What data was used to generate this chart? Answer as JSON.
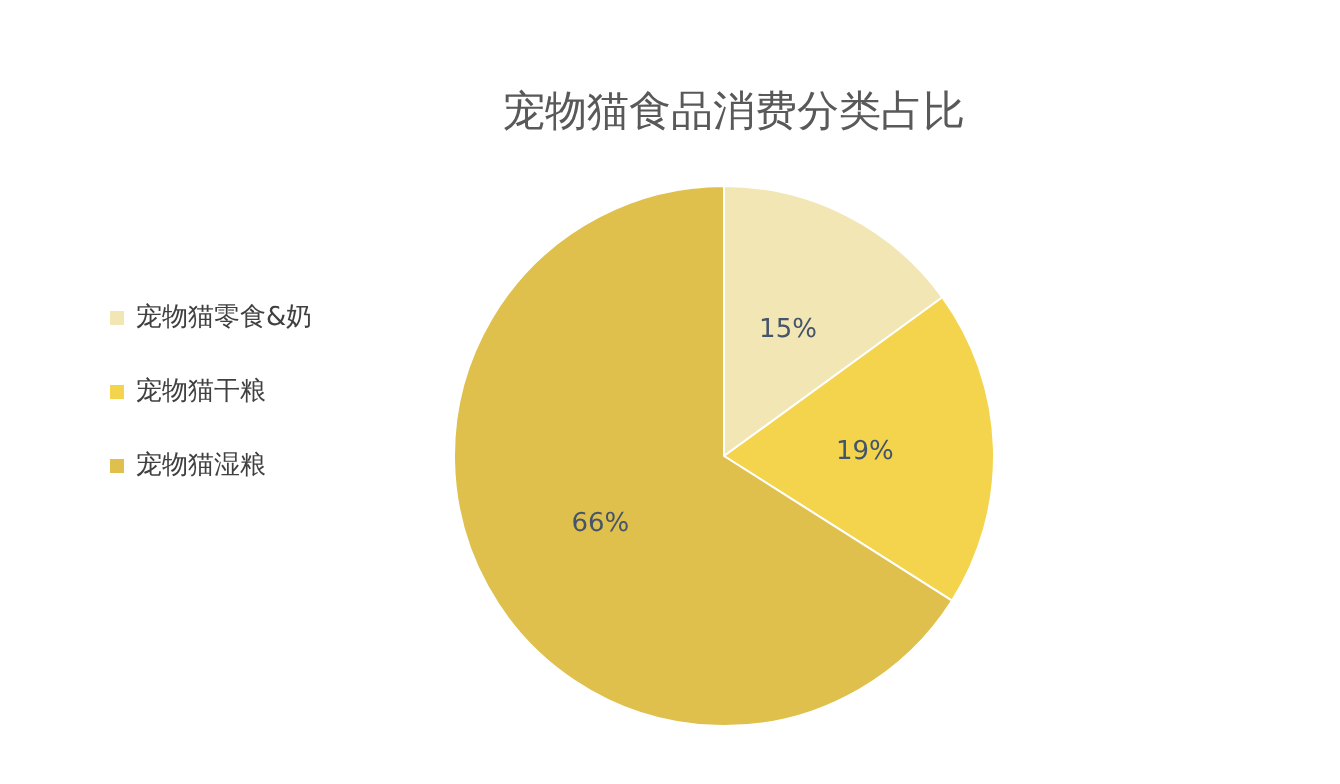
{
  "chart_data": {
    "type": "pie",
    "title": "宠物猫食品消费分类占比",
    "categories": [
      "宠物猫零食&奶",
      "宠物猫干粮",
      "宠物猫湿粮"
    ],
    "values": [
      15,
      19,
      66
    ],
    "colors": [
      "#f2e6b4",
      "#f4d44c",
      "#dfc04c"
    ],
    "value_labels": [
      "15%",
      "19%",
      "66%"
    ],
    "legend": "left"
  }
}
